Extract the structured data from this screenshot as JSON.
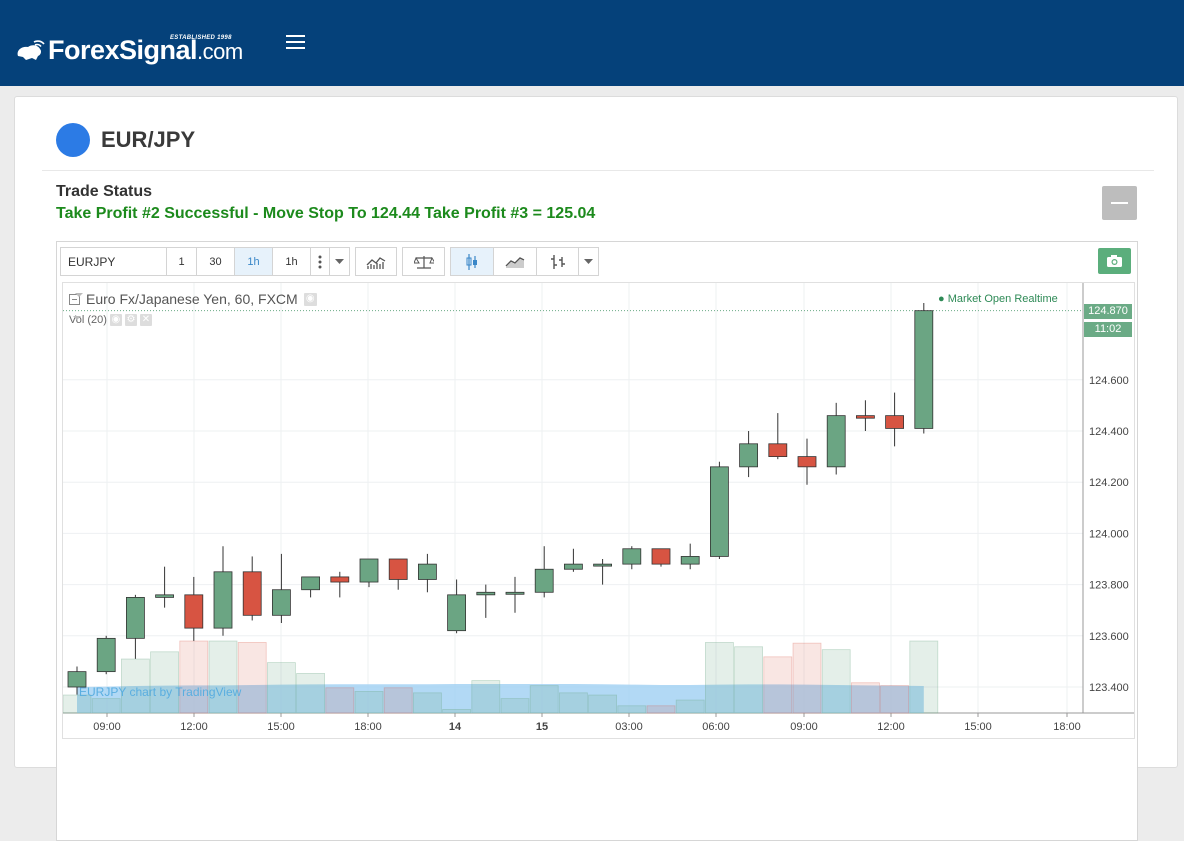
{
  "header": {
    "logo_text": "ForexSignal",
    "logo_suffix": ".com",
    "logo_tagline": "ESTABLISHED 1998",
    "menu_icon": "hamburger-menu-icon"
  },
  "signal": {
    "pair": "EUR/JPY",
    "status_label": "Trade Status",
    "status_text": "Take Profit #2 Successful - Move Stop To 124.44 Take Profit #3 = 125.04",
    "status_color": "#1c8a1c",
    "pair_dot_color": "#2c7be5"
  },
  "widget": {
    "symbol": "EURJPY",
    "intervals": [
      "1",
      "30",
      "1h",
      "1h"
    ],
    "active_interval": "1h",
    "tool_icons": [
      "more-icon",
      "dropdown-icon",
      "indicators-icon",
      "compare-icon",
      "candles-icon",
      "line-chart-icon",
      "bars-icon",
      "dropdown-icon"
    ],
    "camera_icon": "camera-icon",
    "legend_title": "Euro Fx/Japanese Yen, 60, FXCM",
    "volume_label": "Vol (20)",
    "market_status": "● Market Open  Realtime",
    "watermark": "EURJPY chart by TradingView",
    "last_price_label": "124.870",
    "countdown_label": "11:02"
  },
  "chart_data": {
    "type": "candlestick",
    "x_tick_labels": [
      "09:00",
      "12:00",
      "15:00",
      "18:00",
      "14",
      "15",
      "03:00",
      "06:00",
      "09:00",
      "12:00",
      "15:00",
      "18:00"
    ],
    "y_tick_labels": [
      "123.400",
      "123.600",
      "123.800",
      "124.000",
      "124.200",
      "124.400",
      "124.600"
    ],
    "ylim": [
      123.28,
      124.92
    ],
    "up_color": "#6ba583",
    "down_color": "#d75442",
    "last_price": 124.87,
    "candles": [
      {
        "o": 123.4,
        "h": 123.48,
        "l": 123.37,
        "c": 123.46
      },
      {
        "o": 123.46,
        "h": 123.6,
        "l": 123.45,
        "c": 123.59
      },
      {
        "o": 123.59,
        "h": 123.76,
        "l": 123.51,
        "c": 123.75
      },
      {
        "o": 123.75,
        "h": 123.87,
        "l": 123.71,
        "c": 123.76
      },
      {
        "o": 123.76,
        "h": 123.83,
        "l": 123.58,
        "c": 123.63
      },
      {
        "o": 123.63,
        "h": 123.95,
        "l": 123.6,
        "c": 123.85
      },
      {
        "o": 123.85,
        "h": 123.91,
        "l": 123.66,
        "c": 123.68
      },
      {
        "o": 123.68,
        "h": 123.92,
        "l": 123.65,
        "c": 123.78
      },
      {
        "o": 123.78,
        "h": 123.83,
        "l": 123.75,
        "c": 123.83
      },
      {
        "o": 123.83,
        "h": 123.85,
        "l": 123.75,
        "c": 123.81
      },
      {
        "o": 123.81,
        "h": 123.9,
        "l": 123.79,
        "c": 123.9
      },
      {
        "o": 123.9,
        "h": 123.9,
        "l": 123.78,
        "c": 123.82
      },
      {
        "o": 123.82,
        "h": 123.92,
        "l": 123.77,
        "c": 123.88
      },
      {
        "o": 123.62,
        "h": 123.82,
        "l": 123.61,
        "c": 123.76
      },
      {
        "o": 123.76,
        "h": 123.8,
        "l": 123.67,
        "c": 123.77
      },
      {
        "o": 123.77,
        "h": 123.83,
        "l": 123.69,
        "c": 123.77
      },
      {
        "o": 123.77,
        "h": 123.95,
        "l": 123.75,
        "c": 123.86
      },
      {
        "o": 123.86,
        "h": 123.94,
        "l": 123.85,
        "c": 123.88
      },
      {
        "o": 123.88,
        "h": 123.9,
        "l": 123.8,
        "c": 123.88
      },
      {
        "o": 123.88,
        "h": 123.95,
        "l": 123.86,
        "c": 123.94
      },
      {
        "o": 123.94,
        "h": 123.94,
        "l": 123.87,
        "c": 123.88
      },
      {
        "o": 123.88,
        "h": 123.96,
        "l": 123.86,
        "c": 123.91
      },
      {
        "o": 123.91,
        "h": 124.28,
        "l": 123.9,
        "c": 124.26
      },
      {
        "o": 124.26,
        "h": 124.4,
        "l": 124.22,
        "c": 124.35
      },
      {
        "o": 124.35,
        "h": 124.47,
        "l": 124.29,
        "c": 124.3
      },
      {
        "o": 124.3,
        "h": 124.37,
        "l": 124.19,
        "c": 124.26
      },
      {
        "o": 124.26,
        "h": 124.51,
        "l": 124.23,
        "c": 124.46
      },
      {
        "o": 124.46,
        "h": 124.52,
        "l": 124.4,
        "c": 124.45
      },
      {
        "o": 124.46,
        "h": 124.55,
        "l": 124.34,
        "c": 124.41
      },
      {
        "o": 124.41,
        "h": 124.9,
        "l": 124.39,
        "c": 124.87
      }
    ],
    "volume": [
      0.25,
      0.2,
      0.75,
      0.85,
      1.0,
      1.0,
      0.98,
      0.7,
      0.55,
      0.35,
      0.3,
      0.35,
      0.28,
      0.05,
      0.45,
      0.2,
      0.38,
      0.28,
      0.25,
      0.1,
      0.1,
      0.18,
      0.98,
      0.92,
      0.78,
      0.97,
      0.88,
      0.42,
      0.38,
      1.0
    ],
    "volume_ma": [
      0.3,
      0.32,
      0.35,
      0.37,
      0.38,
      0.38,
      0.4,
      0.42,
      0.43,
      0.44,
      0.44,
      0.44,
      0.44,
      0.45,
      0.45,
      0.45,
      0.45,
      0.45,
      0.44,
      0.42,
      0.4,
      0.4,
      0.42,
      0.43,
      0.43,
      0.42,
      0.4,
      0.38,
      0.37,
      0.35
    ]
  }
}
